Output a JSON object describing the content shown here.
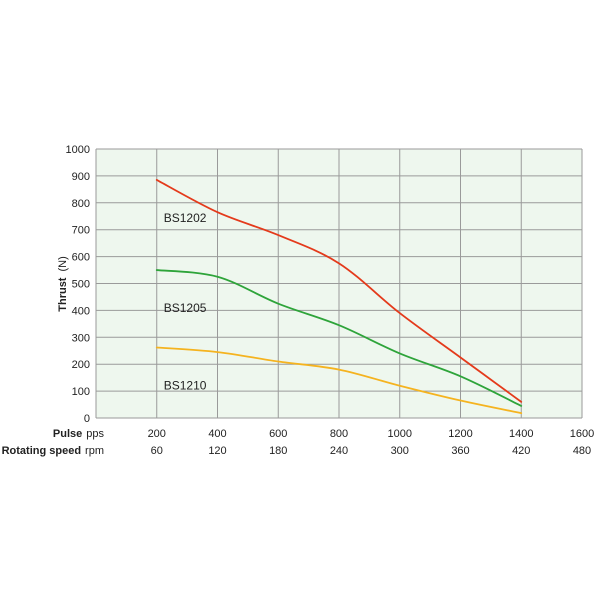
{
  "chart_data": {
    "type": "line",
    "ylabel": "Thrust",
    "ylabel_unit": "(N)",
    "x_primary": {
      "label": "Pulse",
      "unit": "pps",
      "ticks": [
        "200",
        "400",
        "600",
        "800",
        "1000",
        "1200",
        "1400",
        "1600"
      ]
    },
    "x_secondary": {
      "label": "Rotating speed",
      "unit": "rpm",
      "ticks": [
        "60",
        "120",
        "180",
        "240",
        "300",
        "360",
        "420",
        "480"
      ]
    },
    "y_ticks": [
      "0",
      "100",
      "200",
      "300",
      "400",
      "500",
      "600",
      "700",
      "800",
      "900",
      "1000"
    ],
    "xlim": [
      0,
      1600
    ],
    "ylim": [
      0,
      1000
    ],
    "grid": true,
    "colors": {
      "background": "#eef7ee",
      "grid": "#9a9a9a"
    },
    "series": [
      {
        "name": "BS1202",
        "color": "#e43a1b",
        "x": [
          200,
          400,
          600,
          800,
          1000,
          1200,
          1400
        ],
        "y": [
          885,
          765,
          680,
          575,
          390,
          225,
          60
        ]
      },
      {
        "name": "BS1205",
        "color": "#2ea43a",
        "x": [
          200,
          400,
          600,
          800,
          1000,
          1200,
          1400
        ],
        "y": [
          550,
          525,
          425,
          345,
          240,
          155,
          45
        ]
      },
      {
        "name": "BS1210",
        "color": "#f5b31f",
        "x": [
          200,
          400,
          600,
          800,
          1000,
          1200,
          1400
        ],
        "y": [
          262,
          245,
          210,
          180,
          120,
          65,
          18
        ]
      }
    ]
  }
}
